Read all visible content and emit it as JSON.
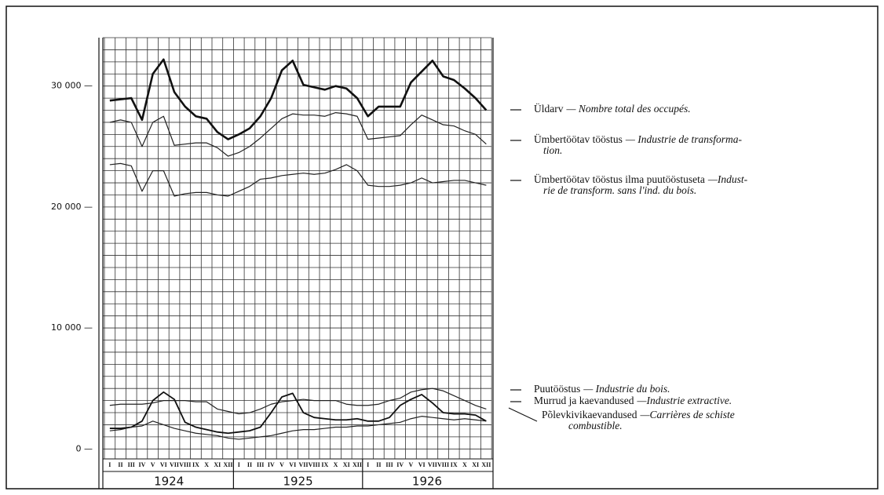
{
  "chart_data": {
    "type": "line",
    "categories": [
      "I",
      "II",
      "III",
      "IV",
      "V",
      "VI",
      "VII",
      "VIII",
      "IX",
      "X",
      "XI",
      "XII",
      "I",
      "II",
      "III",
      "IV",
      "V",
      "VI",
      "VII",
      "VIII",
      "IX",
      "X",
      "XI",
      "XII",
      "I",
      "II",
      "III",
      "IV",
      "V",
      "VI",
      "VII",
      "VIII",
      "IX",
      "X",
      "XI",
      "XII"
    ],
    "years": [
      "1924",
      "1925",
      "1926"
    ],
    "ylim": [
      -500,
      34000
    ],
    "yticks": [
      {
        "value": 0,
        "label": "0 —"
      },
      {
        "value": 10000,
        "label": "10 000 —"
      },
      {
        "value": 20000,
        "label": "20 000 —"
      },
      {
        "value": 30000,
        "label": "30 000 —"
      }
    ],
    "minor_yticks": [
      0,
      1000,
      2000,
      3000,
      4000,
      5000,
      6000,
      7000,
      8000,
      9000,
      10000,
      11000,
      12000,
      13000,
      14000,
      15000,
      16000,
      17000,
      18000,
      19000,
      20000,
      21000,
      22000,
      23000,
      24000,
      25000,
      26000,
      27000,
      28000,
      29000,
      30000,
      31000,
      32000,
      33000,
      34000
    ],
    "grid": true,
    "series": [
      {
        "name": "Üldarv",
        "description": [
          "— Nombre total des occupés."
        ],
        "color": "#111",
        "width": 2.6,
        "values": [
          28800,
          28900,
          29000,
          27200,
          31000,
          32200,
          29500,
          28300,
          27500,
          27300,
          26200,
          25600,
          26000,
          26500,
          27500,
          29000,
          31300,
          32100,
          30100,
          29900,
          29700,
          30000,
          29800,
          29000,
          27500,
          28300,
          28300,
          28300,
          30300,
          31200,
          32100,
          30800,
          30500,
          29800,
          29000,
          28000
        ]
      },
      {
        "name": "Ümbertöötav tööstus",
        "description": [
          "— Industrie de transforma-",
          "tion."
        ],
        "color": "#222",
        "width": 1.2,
        "values": [
          27000,
          27200,
          27000,
          25000,
          27000,
          27500,
          25100,
          25200,
          25300,
          25300,
          24900,
          24200,
          24500,
          25000,
          25700,
          26500,
          27300,
          27700,
          27600,
          27600,
          27500,
          27800,
          27700,
          27500,
          25600,
          25700,
          25800,
          25900,
          26800,
          27600,
          27200,
          26800,
          26700,
          26300,
          26000,
          25200
        ]
      },
      {
        "name": "Ümbertöötav tööstus ilma puutööstuseta",
        "description": [
          "—Indust-",
          "rie de transform. sans l'ind. du bois."
        ],
        "color": "#222",
        "width": 1.2,
        "values": [
          23500,
          23600,
          23400,
          21300,
          23000,
          23000,
          20900,
          21100,
          21200,
          21200,
          21000,
          20900,
          21300,
          21700,
          22300,
          22400,
          22600,
          22700,
          22800,
          22700,
          22800,
          23100,
          23500,
          23000,
          21800,
          21700,
          21700,
          21800,
          22000,
          22400,
          22000,
          22100,
          22200,
          22200,
          22000,
          21800
        ]
      },
      {
        "name": "Puutööstus",
        "description": [
          "— Industrie du bois."
        ],
        "color": "#111",
        "width": 1.8,
        "values": [
          1700,
          1700,
          1800,
          2300,
          4000,
          4700,
          4100,
          2200,
          1800,
          1600,
          1400,
          1300,
          1400,
          1500,
          1800,
          3000,
          4300,
          4600,
          3000,
          2600,
          2500,
          2400,
          2400,
          2500,
          2300,
          2300,
          2600,
          3600,
          4100,
          4500,
          3800,
          3000,
          2900,
          2900,
          2800,
          2300
        ]
      },
      {
        "name": "Murrud ja kaevandused",
        "description": [
          "—Industrie extractive."
        ],
        "color": "#222",
        "width": 1.2,
        "values": [
          3600,
          3700,
          3700,
          3700,
          3800,
          4000,
          4000,
          4000,
          3900,
          3900,
          3300,
          3100,
          2900,
          3000,
          3300,
          3700,
          3900,
          4000,
          4100,
          4000,
          4000,
          4000,
          3700,
          3600,
          3600,
          3700,
          4000,
          4200,
          4700,
          4900,
          5000,
          4800,
          4400,
          4000,
          3600,
          3300
        ]
      },
      {
        "name": "Põlevkivikaevandused",
        "description": [
          "—Carrières de schiste",
          "combustible."
        ],
        "color": "#222",
        "width": 1.2,
        "values": [
          1500,
          1600,
          1800,
          1900,
          2300,
          2000,
          1700,
          1500,
          1300,
          1200,
          1100,
          900,
          800,
          900,
          1000,
          1100,
          1300,
          1500,
          1600,
          1600,
          1700,
          1800,
          1800,
          1900,
          1900,
          2000,
          2100,
          2200,
          2500,
          2700,
          2600,
          2500,
          2400,
          2500,
          2400,
          2300
        ]
      }
    ]
  }
}
